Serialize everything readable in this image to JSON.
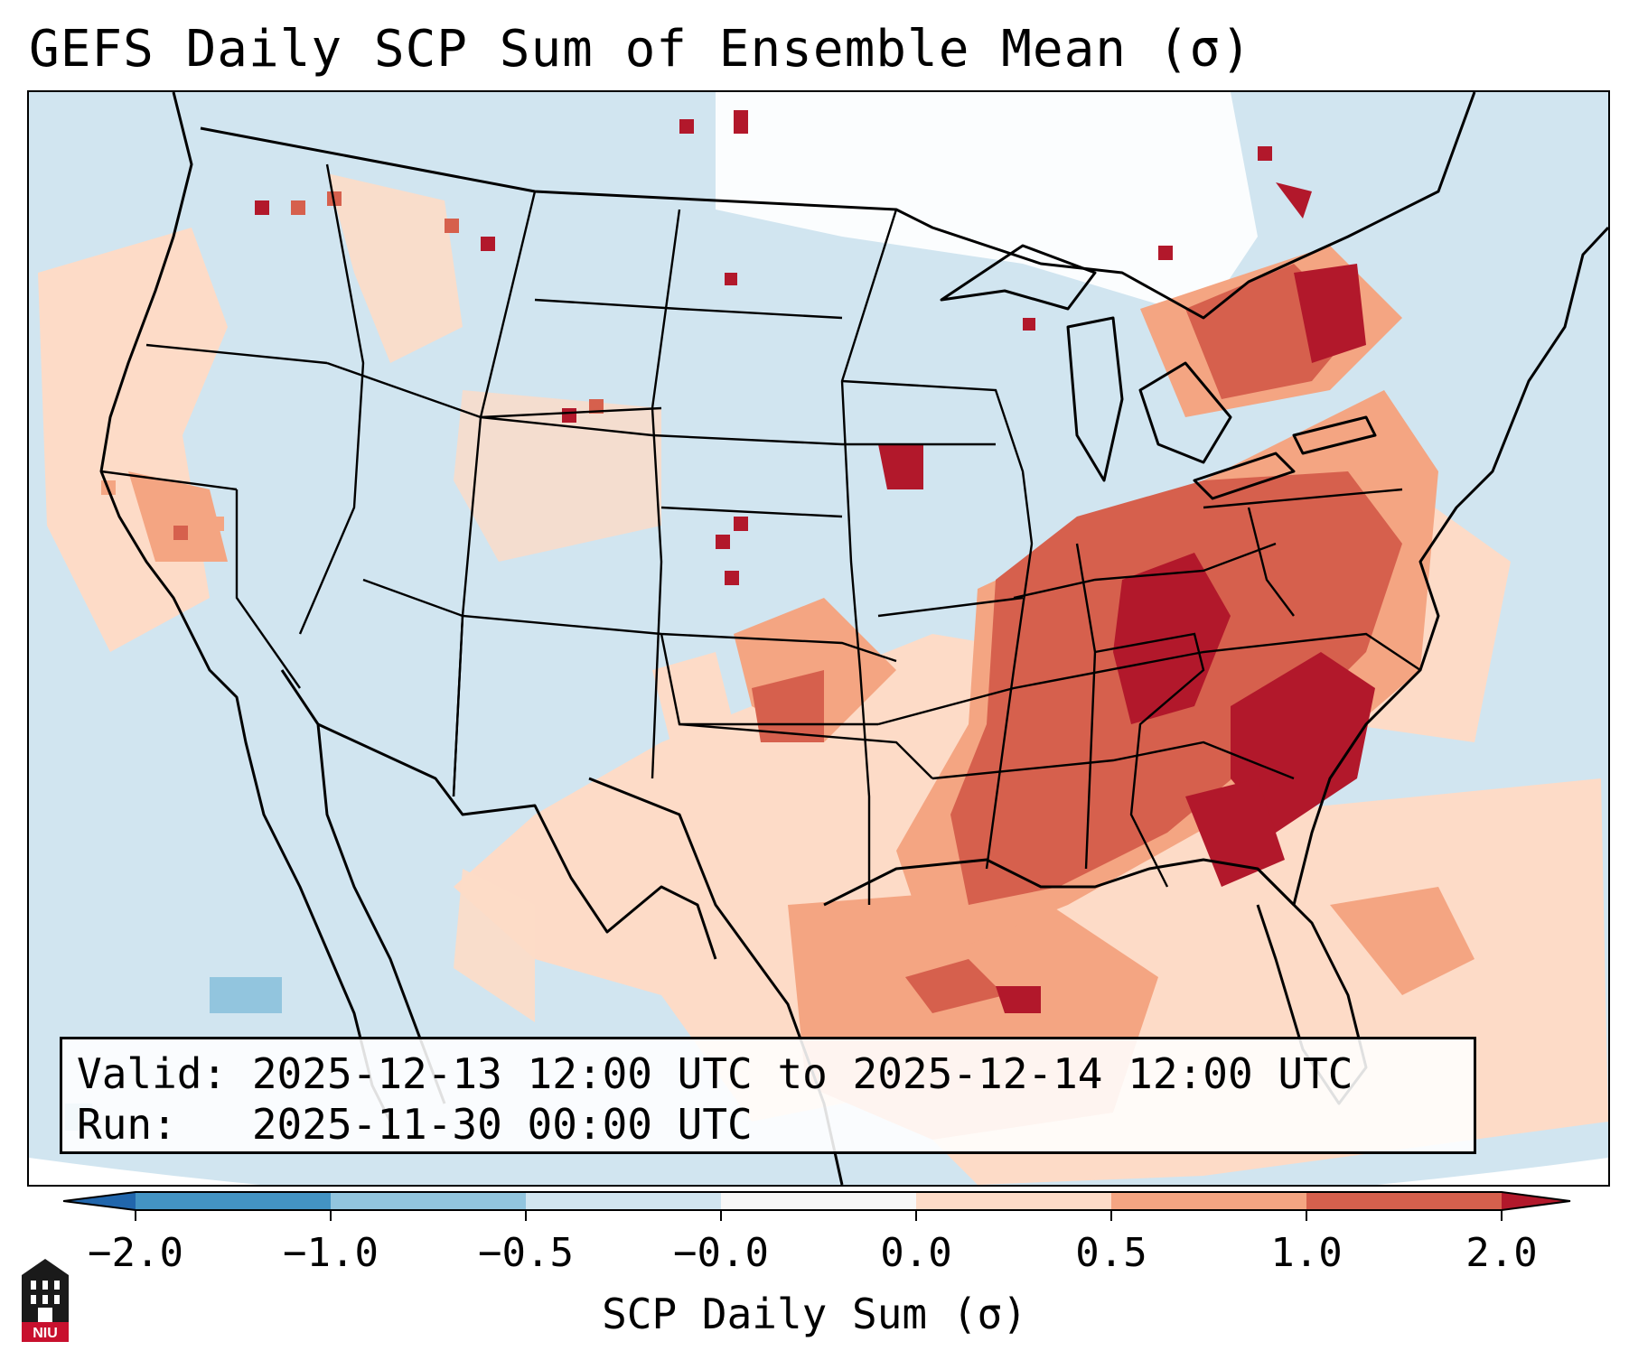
{
  "title": "GEFS Daily SCP Sum of Ensemble Mean (σ)",
  "info": {
    "valid_line": "Valid: 2025-12-13 12:00 UTC to 2025-12-14 12:00 UTC",
    "run_line": "Run:   2025-11-30 00:00 UTC"
  },
  "colorbar": {
    "label": "SCP Daily Sum (σ)",
    "ticks": [
      "−2.0",
      "−1.0",
      "−0.5",
      "−0.0",
      "0.0",
      "0.5",
      "1.0",
      "2.0"
    ],
    "colors": {
      "under": "#2166ac",
      "b1": "#4393c3",
      "b2": "#92c5de",
      "b3": "#d1e5f0",
      "b4": "#f7f7f7",
      "b5": "#fddbc7",
      "b6": "#f4a582",
      "b7": "#d6604d",
      "over": "#b2182b"
    }
  },
  "logo": {
    "text": "NIU",
    "color": "#c8102e"
  }
}
